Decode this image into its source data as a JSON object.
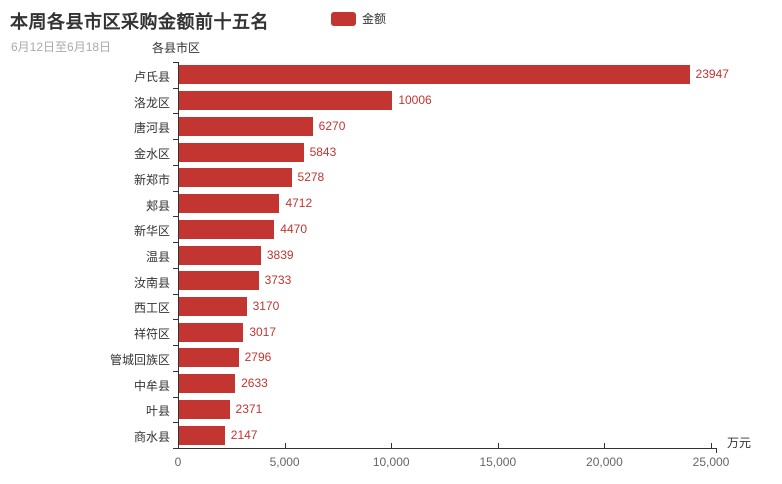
{
  "title": "本周各县市区采购金额前十五名",
  "subtitle": "6月12日至6月18日",
  "legend": {
    "items": [
      {
        "label": "金额",
        "color": "#c23531"
      }
    ]
  },
  "yaxis_name": "各县市区",
  "xaxis_unit": "万元",
  "colors": {
    "bar": "#c23531",
    "value_label": "#c23531",
    "axis": "#333333",
    "axis_tick_label": "#666666",
    "category_label": "#333333",
    "title": "#333333",
    "subtitle": "#aaaaaa"
  },
  "chart_data": {
    "type": "bar",
    "orientation": "horizontal",
    "title": "本周各县市区采购金额前十五名",
    "subtitle": "6月12日至6月18日",
    "legend": [
      "金额"
    ],
    "legend_position": "top",
    "yaxis_name": "各县市区",
    "xaxis_unit": "万元",
    "categories": [
      "卢氏县",
      "洛龙区",
      "唐河县",
      "金水区",
      "新郑市",
      "郏县",
      "新华区",
      "温县",
      "汝南县",
      "西工区",
      "祥符区",
      "管城回族区",
      "中牟县",
      "叶县",
      "商水县"
    ],
    "series": [
      {
        "name": "金额",
        "color": "#c23531",
        "values": [
          23947,
          10006,
          6270,
          5843,
          5278,
          4712,
          4470,
          3839,
          3733,
          3170,
          3017,
          2796,
          2633,
          2371,
          2147
        ]
      }
    ],
    "value_labels": true,
    "xlim": [
      0,
      25000
    ],
    "x_ticks": [
      0,
      5000,
      10000,
      15000,
      20000,
      25000
    ],
    "x_tick_labels": [
      "0",
      "5,000",
      "10,000",
      "15,000",
      "20,000",
      "25,000"
    ],
    "grid": false
  }
}
